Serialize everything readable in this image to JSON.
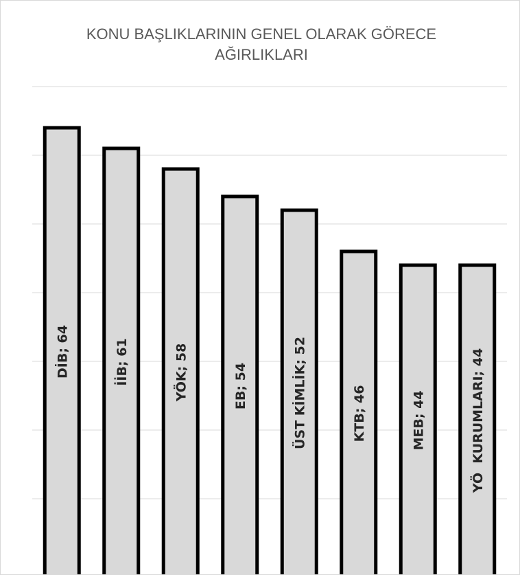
{
  "chart_data": {
    "type": "bar",
    "title": "KONU BAŞLIKLARININ GENEL OLARAK GÖRECE AĞIRLIKLARI",
    "xlabel": "",
    "ylabel": "",
    "categories": [
      "DİB",
      "İİB",
      "YÖK",
      "EB",
      "ÜST KİMLİK",
      "KTB",
      "MEB",
      "YÖ  KURUMLARI"
    ],
    "values": [
      64,
      61,
      58,
      54,
      52,
      46,
      44,
      44
    ],
    "data_labels": [
      "DİB; 64",
      "İİB; 61",
      "YÖK; 58",
      "EB; 54",
      "ÜST KİMLİK; 52",
      "KTB; 46",
      "MEB; 44",
      "YÖ  KURUMLARI; 44"
    ],
    "ylim": [
      0,
      70
    ],
    "y_gridlines": [
      0,
      10,
      20,
      30,
      40,
      50,
      60,
      70
    ],
    "grid": true,
    "legend": "none",
    "colors": {
      "bar_fill": "#d9d9d9",
      "bar_stroke": "#000000",
      "grid": "#d9d9d9",
      "title": "#595959",
      "label": "#262626"
    }
  }
}
